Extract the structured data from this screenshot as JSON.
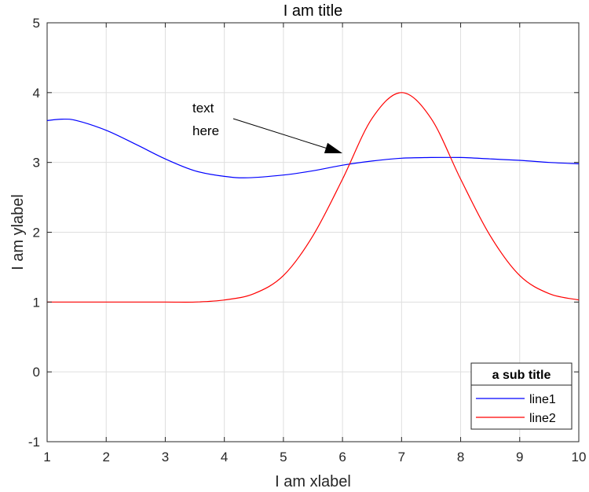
{
  "chart_data": {
    "type": "line",
    "title": "I am title",
    "xlabel": "I am xlabel",
    "ylabel": "I am ylabel",
    "xlim": [
      1,
      10
    ],
    "ylim": [
      -1,
      5
    ],
    "xticks": [
      "1",
      "2",
      "3",
      "4",
      "5",
      "6",
      "7",
      "8",
      "9",
      "10"
    ],
    "yticks": [
      "-1",
      "0",
      "1",
      "2",
      "3",
      "4",
      "5"
    ],
    "grid": true,
    "legend": {
      "title": "a sub title",
      "position": "bottom-right",
      "entries": [
        "line1",
        "line2"
      ]
    },
    "annotation": {
      "lines": [
        "text",
        "here"
      ],
      "arrow_from": [
        4.1,
        3.6
      ],
      "arrow_to": [
        6.0,
        3.12
      ]
    },
    "series": [
      {
        "name": "line1",
        "color": "#0000ff",
        "x": [
          1.0,
          1.25,
          1.5,
          2.0,
          2.5,
          3.0,
          3.5,
          4.0,
          4.4,
          5.0,
          5.5,
          6.0,
          6.5,
          7.0,
          7.5,
          8.0,
          8.5,
          9.0,
          9.5,
          10.0
        ],
        "y": [
          3.6,
          3.62,
          3.6,
          3.46,
          3.26,
          3.05,
          2.88,
          2.8,
          2.78,
          2.82,
          2.88,
          2.96,
          3.02,
          3.06,
          3.07,
          3.07,
          3.05,
          3.03,
          3.0,
          2.98
        ]
      },
      {
        "name": "line2",
        "color": "#ff0000",
        "x": [
          1.0,
          2.0,
          3.0,
          3.5,
          4.0,
          4.5,
          5.0,
          5.5,
          6.0,
          6.5,
          7.0,
          7.5,
          8.0,
          8.5,
          9.0,
          9.5,
          10.0
        ],
        "y": [
          1.0,
          1.0,
          1.0,
          1.0,
          1.03,
          1.12,
          1.38,
          1.95,
          2.76,
          3.63,
          4.0,
          3.63,
          2.76,
          1.95,
          1.38,
          1.12,
          1.03
        ]
      }
    ]
  }
}
